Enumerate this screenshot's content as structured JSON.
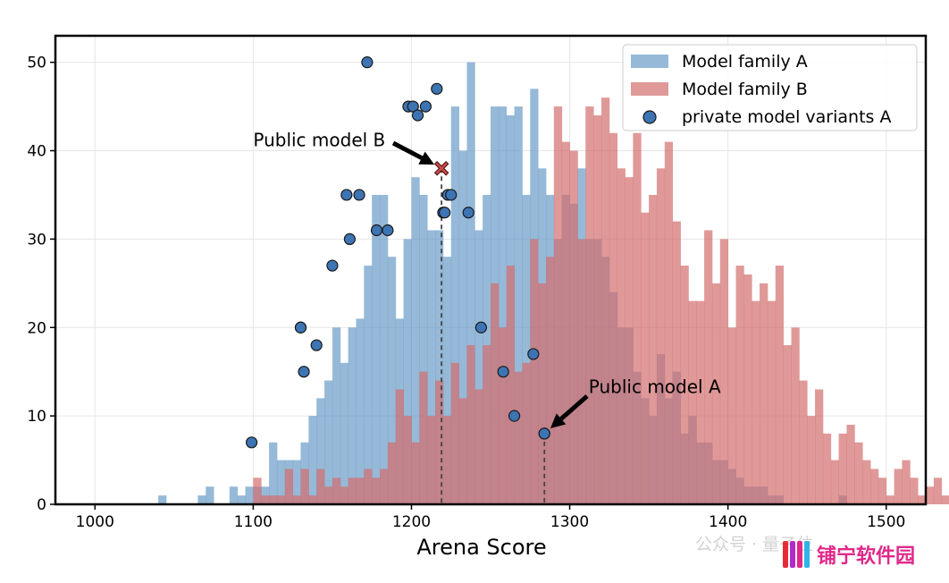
{
  "chart_data": {
    "type": "histogram",
    "xlabel": "Arena Score",
    "ylabel": "",
    "xlim": [
      975,
      1525
    ],
    "ylim": [
      0,
      53
    ],
    "xticks": [
      1000,
      1100,
      1200,
      1300,
      1400,
      1500
    ],
    "yticks": [
      0,
      10,
      20,
      30,
      40,
      50
    ],
    "grid": true,
    "legend_position": "top-right",
    "bin_width": 5,
    "bin_start": 975,
    "series": [
      {
        "name": "Model family A",
        "color": "#6a9bc8",
        "opacity": 0.7,
        "counts": [
          0,
          0,
          0,
          0,
          0,
          0,
          0,
          0,
          0,
          0,
          0,
          0,
          0,
          1,
          0,
          0,
          0,
          0,
          1,
          2,
          0,
          0,
          2,
          1,
          2,
          2,
          2,
          7,
          5,
          5,
          5,
          7,
          10,
          12,
          14,
          20,
          16,
          20,
          21,
          27,
          35,
          35,
          28,
          21,
          30,
          37,
          35,
          31,
          31,
          28,
          45,
          40,
          50,
          31,
          35,
          45,
          45,
          44,
          45,
          35,
          47,
          38,
          35,
          30,
          35,
          34,
          38,
          30,
          30,
          28,
          24,
          20,
          20,
          15,
          12,
          10,
          17,
          12,
          15,
          8,
          10,
          7,
          7,
          5,
          5,
          4,
          3,
          2,
          2,
          2,
          1,
          1,
          0,
          0,
          0,
          0,
          0,
          0,
          0,
          1,
          0,
          0,
          0,
          0,
          0,
          0,
          0,
          0,
          0,
          0
        ]
      },
      {
        "name": "Model family B",
        "color": "#d36e6e",
        "opacity": 0.7,
        "counts": [
          0,
          0,
          0,
          0,
          0,
          0,
          0,
          0,
          0,
          0,
          0,
          0,
          0,
          0,
          0,
          0,
          0,
          0,
          0,
          0,
          0,
          0,
          0,
          0,
          0,
          3,
          1,
          1,
          1,
          4,
          1,
          4,
          1,
          4,
          2,
          3,
          2,
          3,
          3,
          4,
          3,
          4,
          7,
          13,
          10,
          7,
          15,
          10,
          14,
          10,
          16,
          12,
          18,
          13,
          18,
          25,
          20,
          27,
          15,
          16,
          30,
          25,
          28,
          45,
          41,
          40,
          30,
          45,
          44,
          46,
          42,
          38,
          37,
          42,
          33,
          35,
          38,
          41,
          32,
          27,
          23,
          23,
          31,
          25,
          30,
          20,
          27,
          26,
          23,
          25,
          23,
          27,
          18,
          20,
          14,
          10,
          13,
          8,
          5,
          8,
          9,
          7,
          5,
          4,
          3,
          1,
          4,
          5,
          3,
          1,
          2,
          3,
          1,
          1,
          1,
          4,
          3,
          2,
          3,
          2,
          1,
          0,
          0,
          0,
          0,
          1,
          1,
          0,
          0,
          0,
          0,
          0,
          0,
          0,
          0,
          0,
          0,
          0,
          0,
          0,
          0,
          0,
          0,
          0,
          0,
          0,
          0,
          0,
          0,
          0,
          0,
          0
        ]
      },
      {
        "name": "private model variants A",
        "type": "scatter",
        "color": "#3d74b3",
        "points": [
          [
            1099,
            7
          ],
          [
            1130,
            20
          ],
          [
            1130,
            20
          ],
          [
            1132,
            15
          ],
          [
            1140,
            18
          ],
          [
            1150,
            27
          ],
          [
            1159,
            35
          ],
          [
            1161,
            30
          ],
          [
            1167,
            35
          ],
          [
            1172,
            50
          ],
          [
            1178,
            31
          ],
          [
            1185,
            31
          ],
          [
            1198,
            45
          ],
          [
            1201,
            45
          ],
          [
            1204,
            44
          ],
          [
            1209,
            45
          ],
          [
            1216,
            47
          ],
          [
            1220,
            33
          ],
          [
            1221,
            33
          ],
          [
            1223,
            35
          ],
          [
            1225,
            35
          ],
          [
            1236,
            33
          ],
          [
            1244,
            20
          ],
          [
            1258,
            15
          ],
          [
            1265,
            10
          ],
          [
            1277,
            17
          ],
          [
            1284,
            8
          ]
        ]
      }
    ],
    "markers": [
      {
        "label": "Public model B",
        "x": 1219,
        "y": 38,
        "shape": "x",
        "color": "#cc4a4a",
        "dashed_drop": true,
        "label_pos": [
          1100,
          40.5
        ]
      },
      {
        "label": "Public model A",
        "x": 1284,
        "y": 8,
        "shape": "circle",
        "color": "#3d74b3",
        "dashed_drop": true,
        "label_pos": [
          1312,
          12.6
        ]
      }
    ]
  },
  "watermark": {
    "left_text": "公众号 · 量子位",
    "brand_text": "铺宁软件园"
  }
}
